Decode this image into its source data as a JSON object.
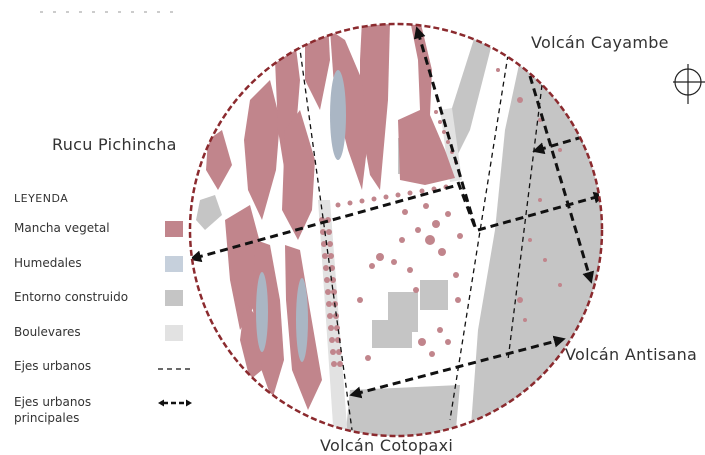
{
  "labels": {
    "cayambe": "Volcán Cayambe",
    "pichincha": "Rucu Pichincha",
    "antisana": "Volcán Antisana",
    "cotopaxi": "Volcán Cotopaxi"
  },
  "legend": {
    "title": "LEYENDA",
    "items": [
      {
        "label": "Mancha vegetal",
        "color": "#c1858c"
      },
      {
        "label": "Humedales",
        "color": "#c6d0dc"
      },
      {
        "label": "Entorno construido",
        "color": "#c5c5c5"
      },
      {
        "label": "Boulevares",
        "color": "#e2e2e2"
      },
      {
        "label": "Ejes urbanos"
      },
      {
        "label_line1": "Ejes urbanos",
        "label_line2": "principales"
      }
    ]
  },
  "icons": {
    "compass": "compass-rose-icon"
  },
  "colors": {
    "boundary": "#8b2a2e",
    "vegetation": "#c1858c",
    "vegetation_dark": "#b07078",
    "wetland": "#aab6c4",
    "built": "#c5c5c5",
    "boulevard": "#e2e2e2",
    "axis": "#111111"
  }
}
